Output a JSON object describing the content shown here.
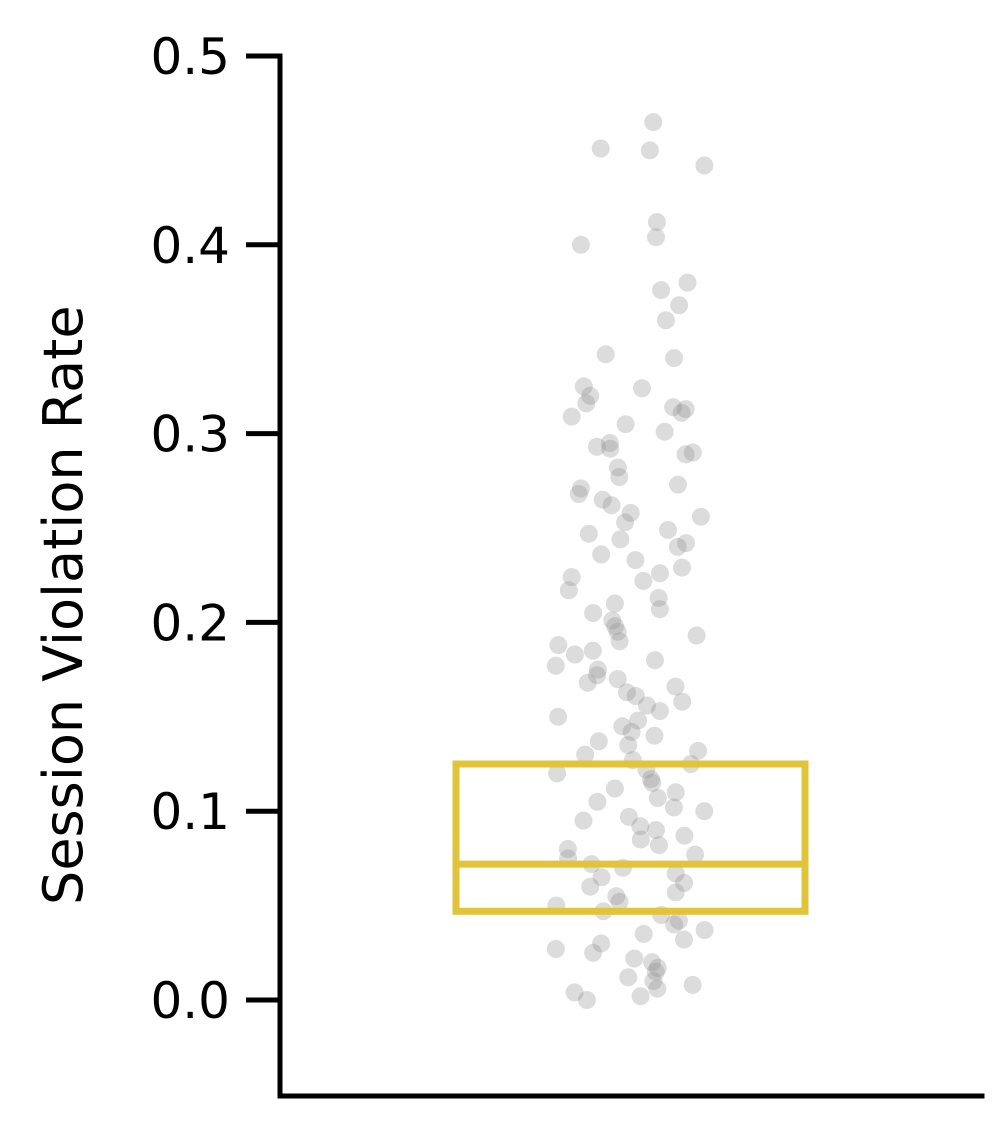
{
  "chart_data": {
    "type": "box-strip",
    "title": "",
    "xlabel": "",
    "ylabel": "Session Violation Rate",
    "ylim": [
      -0.05,
      0.5
    ],
    "yticks": [
      0.0,
      0.1,
      0.2,
      0.3,
      0.4,
      0.5
    ],
    "ytick_labels": [
      "0.0",
      "0.1",
      "0.2",
      "0.3",
      "0.4",
      "0.5"
    ],
    "grid": false,
    "legend": "none",
    "box": {
      "q1": 0.047,
      "median": 0.072,
      "q3": 0.125
    },
    "points_visible": [
      0.465,
      0.451,
      0.45,
      0.442,
      0.412,
      0.404,
      0.4,
      0.38,
      0.376,
      0.368,
      0.36,
      0.342,
      0.34,
      0.325,
      0.324,
      0.32,
      0.316,
      0.314,
      0.313,
      0.311,
      0.309,
      0.305,
      0.301,
      0.295,
      0.293,
      0.292,
      0.29,
      0.289,
      0.282,
      0.277,
      0.273,
      0.271,
      0.268,
      0.265,
      0.262,
      0.258,
      0.256,
      0.253,
      0.249,
      0.247,
      0.244,
      0.242,
      0.24,
      0.236,
      0.233,
      0.229,
      0.226,
      0.224,
      0.222,
      0.217,
      0.213,
      0.21,
      0.207,
      0.205,
      0.201,
      0.198,
      0.195,
      0.193,
      0.19,
      0.188,
      0.185,
      0.183,
      0.18,
      0.177,
      0.175,
      0.172,
      0.17,
      0.168,
      0.166,
      0.163,
      0.161,
      0.158,
      0.156,
      0.153,
      0.15,
      0.148,
      0.145,
      0.142,
      0.14,
      0.137,
      0.135,
      0.132,
      0.13,
      0.127,
      0.125,
      0.122,
      0.12,
      0.117,
      0.115,
      0.112,
      0.11,
      0.107,
      0.105,
      0.102,
      0.1,
      0.097,
      0.095,
      0.092,
      0.09,
      0.087,
      0.085,
      0.082,
      0.08,
      0.077,
      0.075,
      0.072,
      0.07,
      0.067,
      0.065,
      0.062,
      0.06,
      0.057,
      0.055,
      0.052,
      0.05,
      0.047,
      0.045,
      0.042,
      0.04,
      0.037,
      0.035,
      0.032,
      0.03,
      0.027,
      0.025,
      0.022,
      0.02,
      0.017,
      0.015,
      0.012,
      0.01,
      0.008,
      0.006,
      0.004,
      0.002,
      0.0
    ],
    "colors": {
      "box": "#e0c43a",
      "points": "#8c8c8c",
      "axis": "#000000"
    }
  }
}
